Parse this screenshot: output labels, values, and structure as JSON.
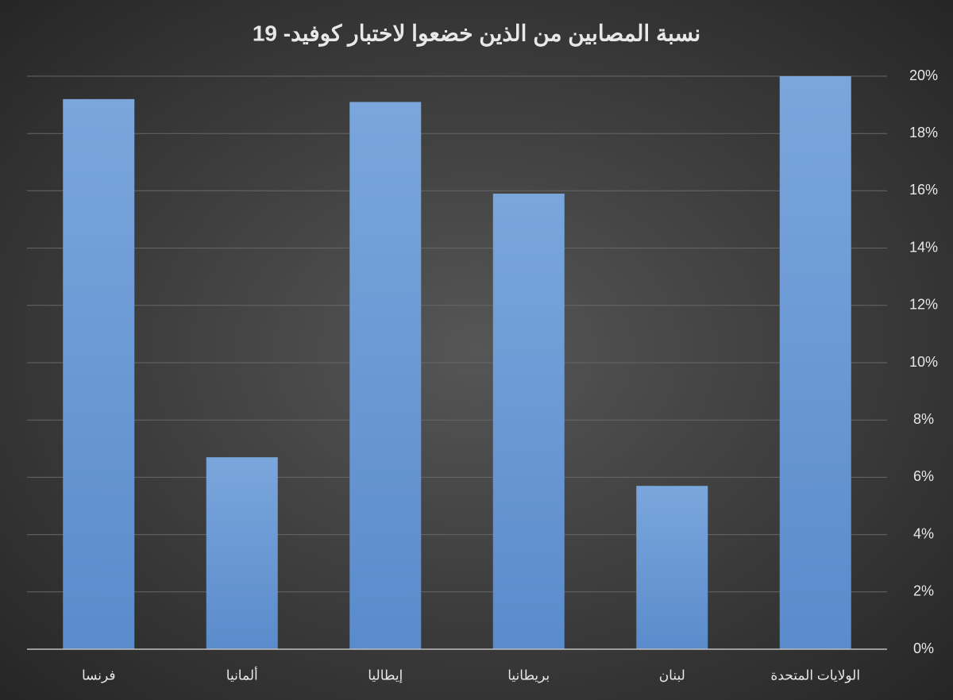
{
  "chart_data": {
    "type": "bar",
    "title": "نسبة المصابين من الذين خضعوا لاختبار كوفيد- 19",
    "categories": [
      "فرنسا",
      "ألمانيا",
      "إيطاليا",
      "بريطانيا",
      "لبنان",
      "الولايات المتحدة"
    ],
    "values": [
      19.2,
      6.7,
      19.1,
      15.9,
      5.7,
      20.0
    ],
    "color": "#6b9bd8",
    "ylim": [
      0,
      20
    ],
    "yticks": [
      {
        "value": 0,
        "label": "0%"
      },
      {
        "value": 2,
        "label": "2%"
      },
      {
        "value": 4,
        "label": "4%"
      },
      {
        "value": 6,
        "label": "6%"
      },
      {
        "value": 8,
        "label": "8%"
      },
      {
        "value": 10,
        "label": "10%"
      },
      {
        "value": 12,
        "label": "12%"
      },
      {
        "value": 14,
        "label": "14%"
      },
      {
        "value": 16,
        "label": "16%"
      },
      {
        "value": 18,
        "label": "18%"
      },
      {
        "value": 20,
        "label": "20%"
      }
    ],
    "grid": true
  }
}
